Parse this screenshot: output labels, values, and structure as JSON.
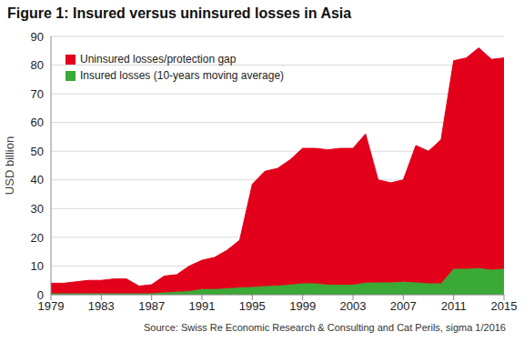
{
  "chart_data": {
    "type": "area",
    "title": "Figure 1: Insured versus uninsured losses in Asia",
    "y_label": "USD billion",
    "source": "Source: Swiss Re Economic Research & Consulting and Cat Perils, sigma 1/2016",
    "stacked": true,
    "grid": true,
    "legend": "top left",
    "x": [
      1979,
      1980,
      1981,
      1982,
      1983,
      1984,
      1985,
      1986,
      1987,
      1988,
      1989,
      1990,
      1991,
      1992,
      1993,
      1994,
      1995,
      1996,
      1997,
      1998,
      1999,
      2000,
      2001,
      2002,
      2003,
      2004,
      2005,
      2006,
      2007,
      2008,
      2009,
      2010,
      2011,
      2012,
      2013,
      2014,
      2015
    ],
    "xlim": [
      1979,
      2015
    ],
    "xticks": [
      1979,
      1983,
      1987,
      1991,
      1995,
      1999,
      2003,
      2007,
      2011,
      2015
    ],
    "ylim": [
      0,
      90
    ],
    "yticks": [
      0,
      10,
      20,
      30,
      40,
      50,
      60,
      70,
      80,
      90
    ],
    "series": [
      {
        "name": "Uninsured losses/protection gap",
        "color": "#e2001a",
        "values": [
          3.5,
          3.5,
          4,
          4.5,
          4.5,
          5,
          5,
          2.5,
          3,
          5.7,
          6,
          8.7,
          10,
          11,
          13.3,
          16.5,
          35.8,
          40,
          40.8,
          43.5,
          47,
          47,
          47,
          47.5,
          47.5,
          51.8,
          35.7,
          34.7,
          35.5,
          47.7,
          46,
          50,
          72.5,
          73.5,
          76.7,
          73.3,
          73.5
        ]
      },
      {
        "name": "Insured losses (10-years moving average)",
        "color": "#3aa935",
        "values": [
          0.5,
          0.5,
          0.5,
          0.5,
          0.5,
          0.5,
          0.5,
          0.5,
          0.5,
          0.8,
          1,
          1.3,
          2,
          2,
          2.2,
          2.5,
          2.7,
          3,
          3.2,
          3.5,
          4,
          4,
          3.5,
          3.5,
          3.5,
          4.2,
          4.3,
          4.3,
          4.5,
          4.3,
          4,
          4,
          9,
          9,
          9.3,
          8.7,
          9
        ]
      }
    ]
  }
}
